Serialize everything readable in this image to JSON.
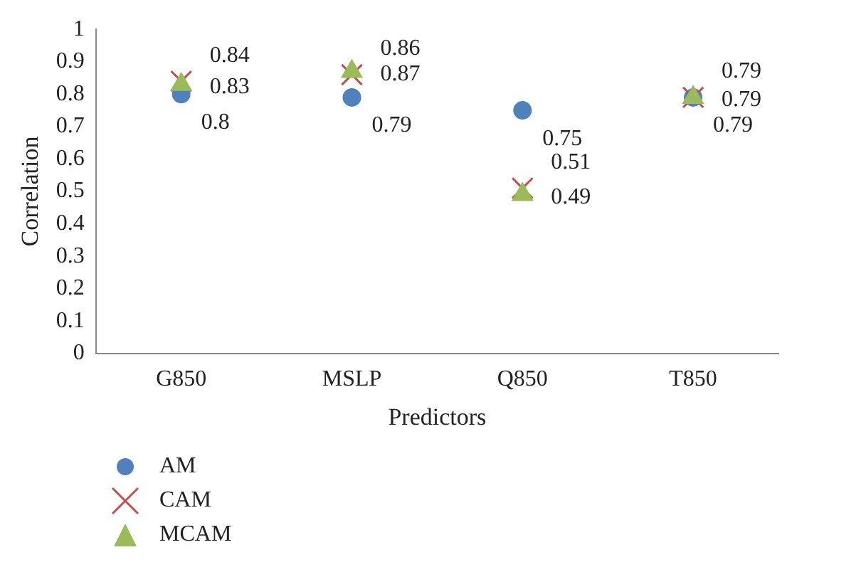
{
  "chart_data": {
    "type": "scatter",
    "xlabel": "Predictors",
    "ylabel": "Correlation",
    "categories": [
      "G850",
      "MSLP",
      "Q850",
      "T850"
    ],
    "series": [
      {
        "name": "AM",
        "color": "#4f81bd",
        "marker": "circle",
        "values": [
          0.8,
          0.79,
          0.75,
          0.79
        ]
      },
      {
        "name": "CAM",
        "color": "#c0504d",
        "marker": "cross",
        "values": [
          0.84,
          0.86,
          0.51,
          0.79
        ]
      },
      {
        "name": "MCAM",
        "color": "#9bbb59",
        "marker": "triangle",
        "values": [
          0.83,
          0.87,
          0.49,
          0.79
        ]
      }
    ],
    "ylim": [
      0,
      1
    ],
    "yticks": [
      0,
      0.1,
      0.2,
      0.3,
      0.4,
      0.5,
      0.6,
      0.7,
      0.8,
      0.9,
      1
    ],
    "grid": false,
    "legend": "bottom left",
    "data_labels": true
  }
}
